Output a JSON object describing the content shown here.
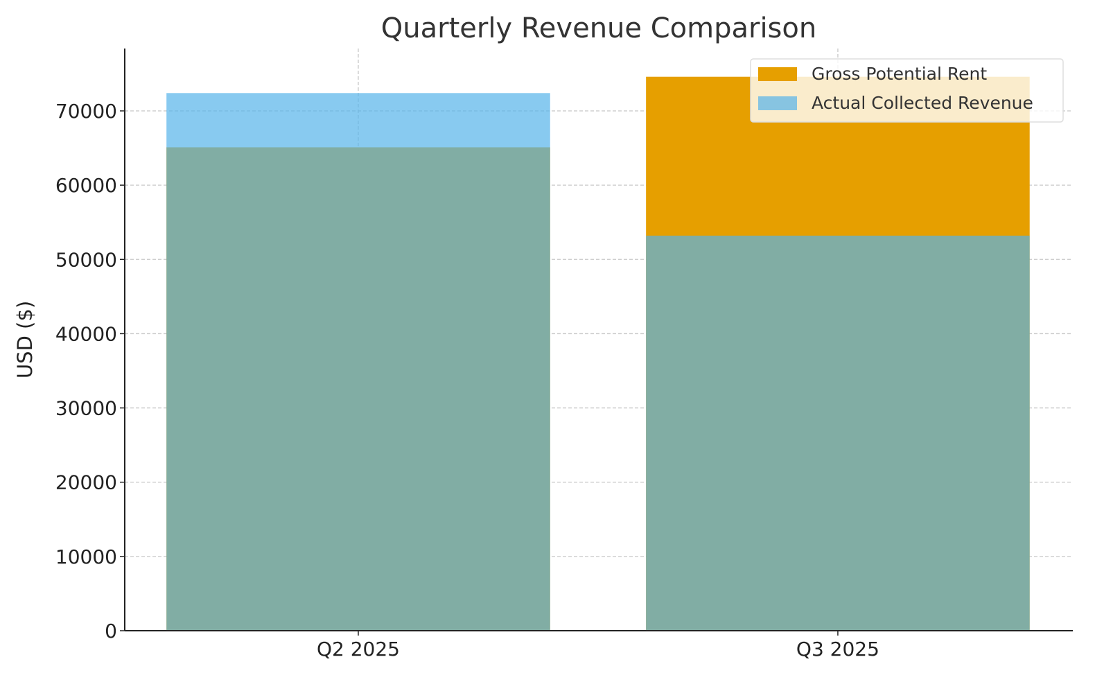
{
  "chart_data": {
    "type": "bar",
    "title": "Quarterly Revenue Comparison",
    "xlabel": "",
    "ylabel": "USD ($)",
    "categories": [
      "Q2 2025",
      "Q3 2025"
    ],
    "series": [
      {
        "name": "Gross Potential Rent",
        "values": [
          65100,
          74600
        ],
        "color": "#E69F00",
        "opacity": 1
      },
      {
        "name": "Actual Collected Revenue",
        "values": [
          72400,
          53200
        ],
        "color": "#56B4E9",
        "opacity": 0.7
      }
    ],
    "bar_mode": "overlap",
    "ylim": [
      0,
      78400
    ],
    "yticks": [
      0,
      10000,
      20000,
      30000,
      40000,
      50000,
      60000,
      70000
    ],
    "grid": true,
    "legend_position": "top-right"
  }
}
